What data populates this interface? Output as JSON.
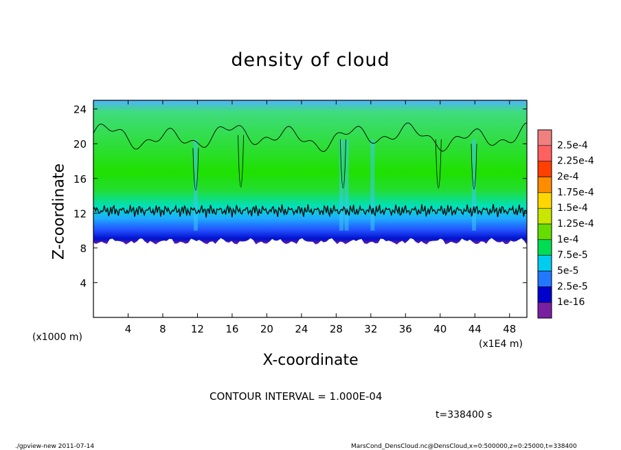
{
  "chart_data": {
    "type": "heatmap",
    "title": "density of cloud",
    "xlabel": "X-coordinate",
    "ylabel": "Z-coordinate",
    "x_unit_left": "(x1000 m)",
    "x_unit_right": "(x1E4 m)",
    "xlim": [
      0,
      50
    ],
    "ylim": [
      0,
      25
    ],
    "x_ticks": [
      4,
      8,
      12,
      16,
      20,
      24,
      28,
      32,
      36,
      40,
      44,
      48
    ],
    "y_ticks": [
      4,
      8,
      12,
      16,
      20,
      24
    ],
    "colorbar": {
      "labels": [
        "2.5e-4",
        "2.25e-4",
        "2e-4",
        "1.75e-4",
        "1.5e-4",
        "1.25e-4",
        "1e-4",
        "7.5e-5",
        "5e-5",
        "2.5e-5",
        "1e-16"
      ],
      "colors": [
        "#f08080",
        "#ff6060",
        "#ff4000",
        "#ff8c00",
        "#ffd700",
        "#c8e600",
        "#66dd00",
        "#00dd55",
        "#00ccee",
        "#2277ff",
        "#0000cc",
        "#7a1fa2"
      ]
    },
    "cloud_layer": {
      "base_z": 9.0,
      "top_z": 24.0,
      "contour_levels": [
        0.0001
      ],
      "lower_contour_z": 12.3,
      "upper_contour_z_mean": 20.8
    },
    "contour_interval_text": "CONTOUR INTERVAL = 1.000E-04",
    "time_text": "t=338400 s"
  },
  "footer": {
    "left": "./gpview-new   2011-07-14",
    "right": "MarsCond_DensCloud.nc@DensCloud,x=0:500000,z=0:25000,t=338400"
  }
}
